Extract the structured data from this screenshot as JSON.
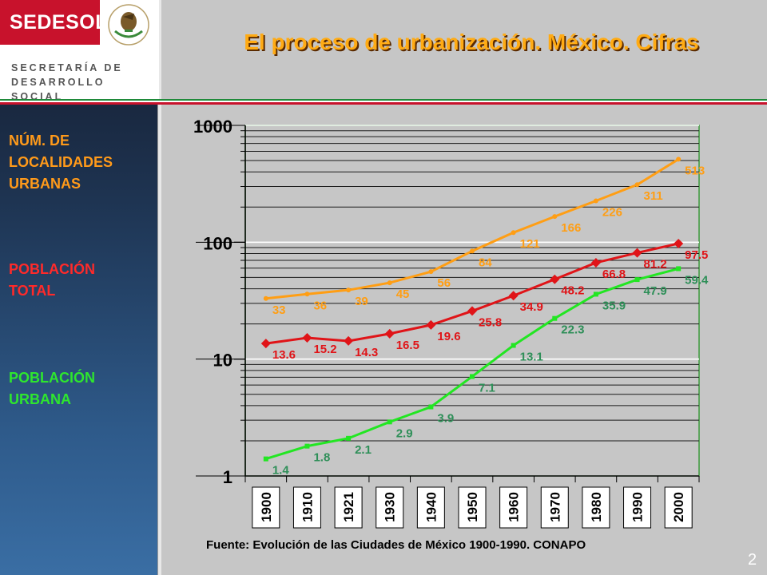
{
  "branding": {
    "logo": "SEDESOL",
    "agency_line1": "SECRETARÍA DE",
    "agency_line2": "DESARROLLO SOCIAL"
  },
  "title": "El proceso de urbanización. México. Cifras",
  "sidebar_labels": {
    "localidades": [
      "NÚM. DE",
      "LOCALIDADES",
      "URBANAS"
    ],
    "poblacion_total": [
      "POBLACIÓN",
      "TOTAL"
    ],
    "poblacion_urbana": [
      "POBLACIÓN",
      "URBANA"
    ]
  },
  "source": "Fuente: Evolución de las Ciudades de México 1900-1990. CONAPO",
  "page_number": "2",
  "colors": {
    "localidades": "#ff9e14",
    "poblacion_total": "#e01418",
    "poblacion_urbana": "#22e622",
    "label_localidades": "#ff9e14",
    "label_total": "#e01418",
    "label_urbana": "#2e8f58"
  },
  "chart_data": {
    "type": "line",
    "y_scale": "log",
    "ylim": [
      1,
      1000
    ],
    "y_ticks": [
      "1",
      "10",
      "100",
      "1000"
    ],
    "categories": [
      "1900",
      "1910",
      "1921",
      "1930",
      "1940",
      "1950",
      "1960",
      "1970",
      "1980",
      "1990",
      "2000"
    ],
    "grid": true,
    "series": [
      {
        "key": "localidades",
        "marker": "circle",
        "values": [
          33,
          36,
          39,
          45,
          56,
          84,
          121,
          166,
          226,
          311,
          513
        ],
        "labels": [
          "33",
          "36",
          "39",
          "45",
          "56",
          "84",
          "121",
          "166",
          "226",
          "311",
          "513"
        ]
      },
      {
        "key": "poblacion_total",
        "marker": "diamond",
        "values": [
          13.6,
          15.2,
          14.3,
          16.5,
          19.6,
          25.8,
          34.9,
          48.2,
          66.8,
          81.2,
          97.5
        ],
        "labels": [
          "13.6",
          "15.2",
          "14.3",
          "16.5",
          "19.6",
          "25.8",
          "34.9",
          "48.2",
          "66.8",
          "81.2",
          "97.5"
        ]
      },
      {
        "key": "poblacion_urbana",
        "marker": "square",
        "values": [
          1.4,
          1.8,
          2.1,
          2.9,
          3.9,
          7.1,
          13.1,
          22.3,
          35.9,
          47.9,
          59.4
        ],
        "labels": [
          "1.4",
          "1.8",
          "2.1",
          "2.9",
          "3.9",
          "7.1",
          "13.1",
          "22.3",
          "35.9",
          "47.9",
          "59.4"
        ]
      }
    ]
  }
}
